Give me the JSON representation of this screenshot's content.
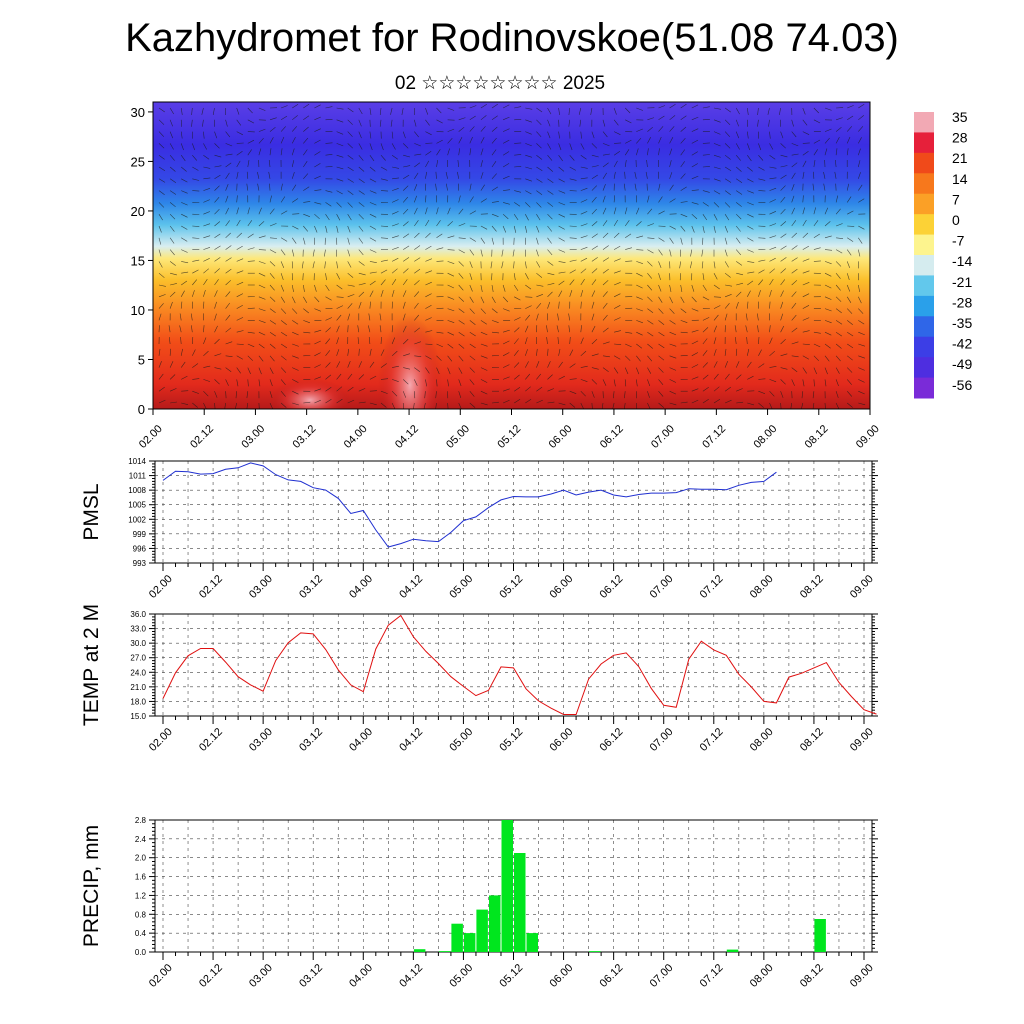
{
  "title": "Kazhydromet for Rodinovskoe(51.08 74.03)",
  "subtitle": "02 ☆☆☆☆☆☆☆☆ 2025",
  "x_ticks": [
    "02.00",
    "02.12",
    "03.00",
    "03.12",
    "04.00",
    "04.12",
    "05.00",
    "05.12",
    "06.00",
    "06.12",
    "07.00",
    "07.12",
    "08.00",
    "08.12",
    "09.00"
  ],
  "colorbar": {
    "labels": [
      "35",
      "28",
      "21",
      "14",
      "7",
      "0",
      "-7",
      "-14",
      "-21",
      "-28",
      "-35",
      "-42",
      "-49",
      "-56"
    ],
    "colors": [
      "#f2a9b4",
      "#e6203a",
      "#f04a1a",
      "#f7781c",
      "#fba026",
      "#fcd236",
      "#fdf48e",
      "#d5ecef",
      "#62c8ec",
      "#2aa0ea",
      "#2f66e8",
      "#3c3ee6",
      "#4e2ee0",
      "#7a2bd8"
    ]
  },
  "chart_data": [
    {
      "type": "heatmap",
      "title": "",
      "ylabel": "",
      "y_ticks": [
        "0",
        "5",
        "10",
        "15",
        "20",
        "25",
        "30"
      ],
      "ylim": [
        0,
        31
      ],
      "description_levels": "temperature by model level with wind barbs"
    },
    {
      "type": "line",
      "ylabel": "PMSL",
      "ylim": [
        993,
        1014
      ],
      "y_ticks": [
        "993",
        "996",
        "999",
        "1002",
        "1005",
        "1008",
        "1011",
        "1014"
      ],
      "line_color": "#1f2fd0",
      "x_step_hours": 3,
      "values": [
        1010.0,
        1011.9,
        1011.8,
        1011.3,
        1011.4,
        1012.3,
        1012.6,
        1013.6,
        1013.0,
        1011.2,
        1010.1,
        1009.8,
        1008.5,
        1008.0,
        1006.3,
        1003.2,
        1003.8,
        999.8,
        996.3,
        997.0,
        997.9,
        997.6,
        997.4,
        999.3,
        1001.7,
        1002.5,
        1004.4,
        1006.0,
        1006.7,
        1006.6,
        1006.6,
        1007.2,
        1008.0,
        1007.0,
        1007.6,
        1008.0,
        1007.0,
        1006.6,
        1007.1,
        1007.4,
        1007.4,
        1007.5,
        1008.3,
        1008.2,
        1008.2,
        1008.1,
        1009.0,
        1009.6,
        1009.8,
        1011.7
      ]
    },
    {
      "type": "line",
      "ylabel": "TEMP at 2 M",
      "ylim": [
        15.0,
        36.0
      ],
      "y_ticks": [
        "15.0",
        "18.0",
        "21.0",
        "24.0",
        "27.0",
        "30.0",
        "33.0",
        "36.0"
      ],
      "line_color": "#e01010",
      "x_step_hours": 3,
      "values": [
        18.6,
        23.9,
        27.4,
        28.9,
        28.9,
        26.1,
        23.1,
        21.4,
        20.1,
        26.4,
        30.1,
        32.1,
        31.9,
        28.7,
        24.5,
        21.4,
        20.0,
        28.8,
        33.7,
        35.7,
        31.3,
        28.3,
        25.8,
        23.1,
        21.1,
        19.2,
        20.3,
        25.1,
        24.9,
        20.6,
        18.1,
        16.6,
        15.3,
        15.3,
        22.6,
        25.7,
        27.5,
        28.0,
        25.2,
        20.7,
        17.2,
        16.8,
        26.7,
        30.4,
        28.6,
        27.5,
        23.6,
        21.0,
        18.0,
        17.7,
        23.0,
        23.8,
        24.9,
        26.0,
        21.9,
        19.0,
        16.3,
        15.4
      ]
    },
    {
      "type": "bar",
      "ylabel": "PRECIP, mm",
      "ylim": [
        0.0,
        2.8
      ],
      "y_ticks": [
        "0.0",
        "0.4",
        "0.8",
        "1.2",
        "1.6",
        "2.0",
        "2.4",
        "2.8"
      ],
      "bar_color": "#00e61e",
      "x_step_hours": 3,
      "values": [
        0,
        0,
        0,
        0,
        0,
        0,
        0,
        0,
        0,
        0,
        0,
        0,
        0,
        0,
        0,
        0,
        0,
        0,
        0,
        0,
        0.06,
        0,
        0.02,
        0.6,
        0.4,
        0.9,
        1.2,
        2.8,
        2.1,
        0.4,
        0,
        0,
        0,
        0,
        0.02,
        0,
        0,
        0,
        0,
        0,
        0,
        0,
        0,
        0,
        0,
        0.05,
        0,
        0,
        0,
        0,
        0,
        0,
        0.7,
        0,
        0,
        0,
        0
      ]
    }
  ]
}
